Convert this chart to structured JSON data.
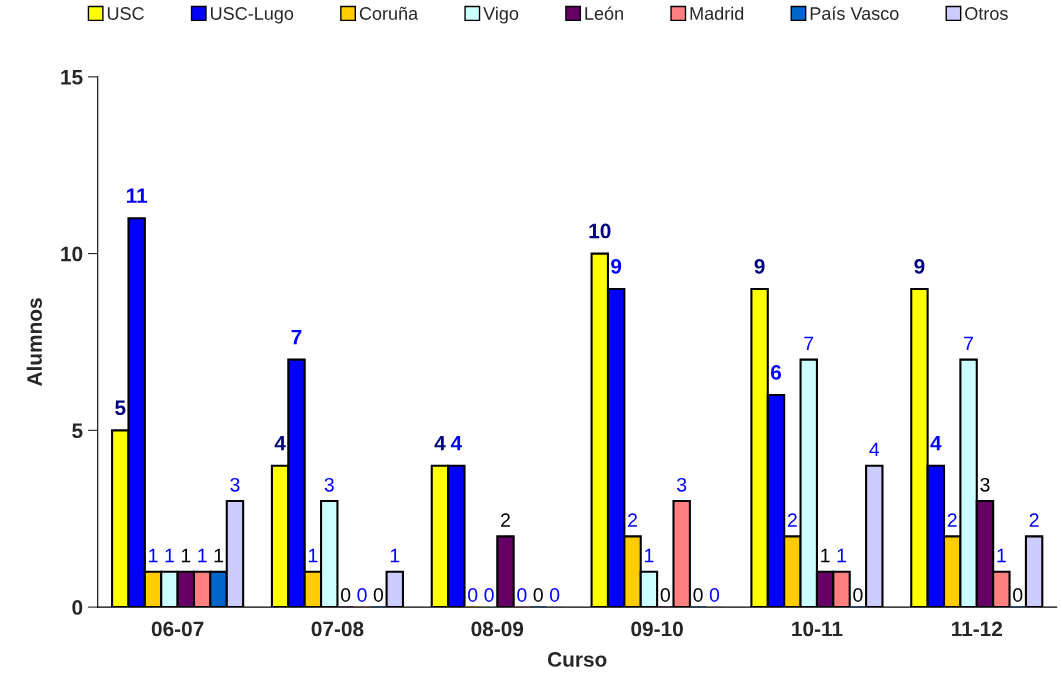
{
  "chart_data": {
    "type": "bar",
    "xlabel": "Curso",
    "ylabel": "Alumnos",
    "categories": [
      "06-07",
      "07-08",
      "08-09",
      "09-10",
      "10-11",
      "11-12"
    ],
    "series": [
      {
        "name": "USC",
        "color": "#ffff00",
        "values": [
          5,
          4,
          4,
          10,
          9,
          9
        ]
      },
      {
        "name": "USC-Lugo",
        "color": "#0000ff",
        "values": [
          11,
          7,
          4,
          9,
          6,
          4
        ]
      },
      {
        "name": "Coruña",
        "color": "#ffcc00",
        "values": [
          1,
          1,
          0,
          2,
          2,
          2
        ]
      },
      {
        "name": "Vigo",
        "color": "#ccffff",
        "values": [
          1,
          3,
          0,
          1,
          7,
          7
        ]
      },
      {
        "name": "León",
        "color": "#660066",
        "values": [
          1,
          0,
          2,
          0,
          1,
          3
        ]
      },
      {
        "name": "Madrid",
        "color": "#ff8080",
        "values": [
          1,
          0,
          0,
          3,
          1,
          1
        ]
      },
      {
        "name": "País Vasco",
        "color": "#0066cc",
        "values": [
          1,
          0,
          0,
          0,
          0,
          0
        ]
      },
      {
        "name": "Otros",
        "color": "#ccccff",
        "values": [
          3,
          1,
          0,
          0,
          4,
          2
        ]
      }
    ],
    "ylim": [
      0,
      15
    ],
    "yticks": [
      0,
      5,
      10,
      15
    ],
    "data_labels": true,
    "legend": "top",
    "grid": false
  }
}
